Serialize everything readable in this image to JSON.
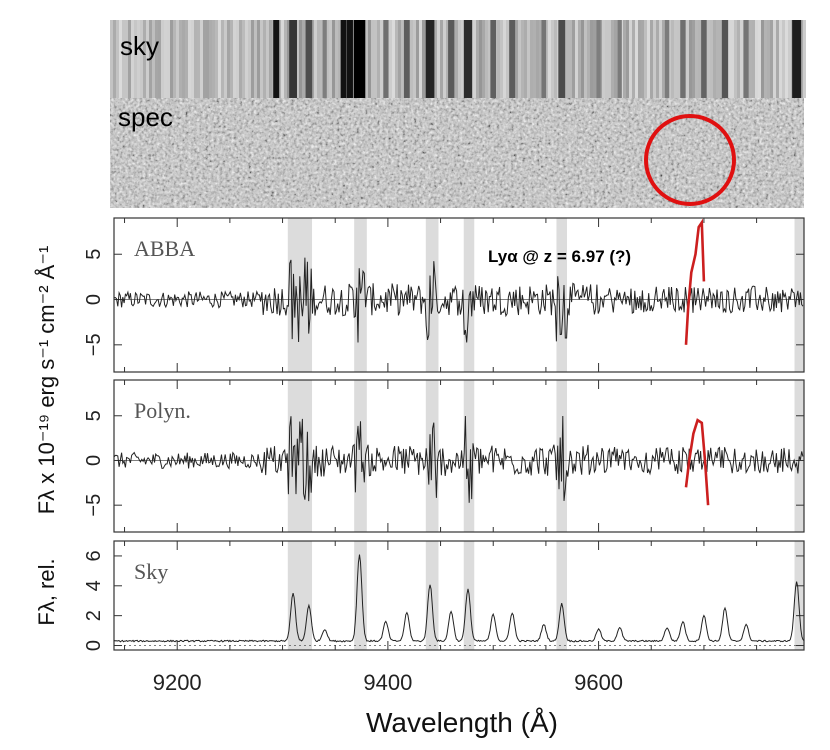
{
  "figure": {
    "xlabel": "Wavelength (Å)",
    "ylabel_main": "Fλ x 10⁻¹⁹ erg s⁻¹ cm⁻² Å⁻¹",
    "ylabel_rel": "Fλ, rel.",
    "annotation": "Lyα @ z = 6.97 (?)",
    "line_color": "#222222",
    "highlight_color": "#cc1f1f",
    "band_color": "#dcdcdc"
  },
  "images": {
    "sky_label": "sky",
    "spec_label": "spec"
  },
  "chart_data": [
    {
      "type": "line",
      "name": "ABBA",
      "panel_label": "ABBA",
      "xlim": [
        9140,
        9795
      ],
      "ylim": [
        -8,
        9
      ],
      "yticks": [
        -5,
        0,
        5
      ],
      "ytick_labels": [
        "−5",
        "0",
        "5"
      ],
      "xticks": [
        9200,
        9400,
        9600
      ],
      "xtick_labels": [
        "9200",
        "9400",
        "9600"
      ],
      "feature": {
        "x": [
          9683,
          9685,
          9688,
          9692,
          9695,
          9698,
          9700
        ],
        "y": [
          -5,
          -1,
          3,
          5,
          8,
          8.5,
          2
        ]
      }
    },
    {
      "type": "line",
      "name": "Polyn.",
      "panel_label": "Polyn.",
      "xlim": [
        9140,
        9795
      ],
      "ylim": [
        -8,
        9
      ],
      "yticks": [
        -5,
        0,
        5
      ],
      "ytick_labels": [
        "−5",
        "0",
        "5"
      ],
      "feature": {
        "x": [
          9683,
          9686,
          9690,
          9694,
          9698,
          9701,
          9704
        ],
        "y": [
          -3,
          0,
          3,
          4.5,
          4.2,
          0,
          -5
        ]
      }
    },
    {
      "type": "line",
      "name": "Sky",
      "panel_label": "Sky",
      "xlim": [
        9140,
        9795
      ],
      "ylim": [
        -0.3,
        7
      ],
      "yticks": [
        0,
        2,
        4,
        6
      ],
      "ytick_labels": [
        "0",
        "2",
        "4",
        "6"
      ],
      "lines": [
        {
          "x": 9310,
          "h": 3.2
        },
        {
          "x": 9325,
          "h": 2.4
        },
        {
          "x": 9340,
          "h": 0.8
        },
        {
          "x": 9373,
          "h": 5.8
        },
        {
          "x": 9398,
          "h": 1.3
        },
        {
          "x": 9418,
          "h": 1.9
        },
        {
          "x": 9440,
          "h": 3.8
        },
        {
          "x": 9460,
          "h": 2.0
        },
        {
          "x": 9476,
          "h": 3.5
        },
        {
          "x": 9500,
          "h": 1.8
        },
        {
          "x": 9518,
          "h": 1.9
        },
        {
          "x": 9548,
          "h": 1.1
        },
        {
          "x": 9565,
          "h": 2.5
        },
        {
          "x": 9600,
          "h": 0.8
        },
        {
          "x": 9620,
          "h": 0.9
        },
        {
          "x": 9665,
          "h": 0.9
        },
        {
          "x": 9680,
          "h": 1.3
        },
        {
          "x": 9700,
          "h": 1.7
        },
        {
          "x": 9720,
          "h": 2.2
        },
        {
          "x": 9740,
          "h": 1.1
        },
        {
          "x": 9788,
          "h": 4.0
        }
      ]
    }
  ],
  "shaded_bands": [
    [
      9305,
      9328
    ],
    [
      9368,
      9380
    ],
    [
      9436,
      9448
    ],
    [
      9472,
      9482
    ],
    [
      9560,
      9570
    ],
    [
      9786,
      9795
    ]
  ]
}
